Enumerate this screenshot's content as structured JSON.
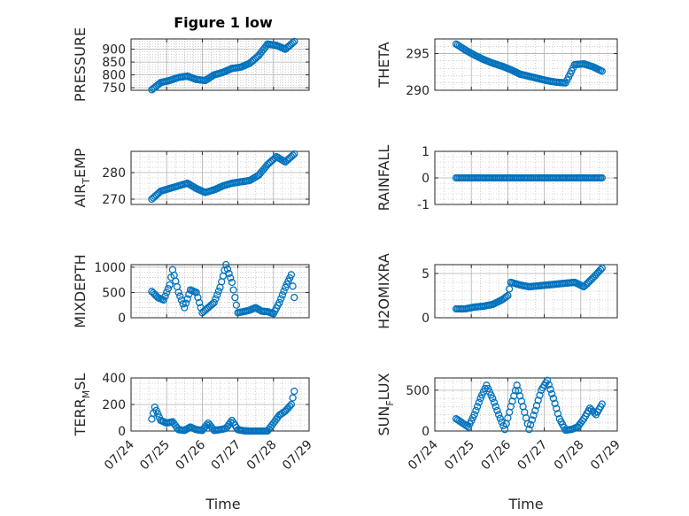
{
  "figure": {
    "title": "Figure 1 low",
    "xlabel": "Time"
  },
  "colors": {
    "marker": "#0072BD",
    "axis": "#262626",
    "grid": "#b0b0b0"
  },
  "chart_data": [
    {
      "id": "pressure",
      "type": "scatter",
      "ylabel": "PRESSURE",
      "ylabel_sub": "",
      "ylim": [
        740,
        940
      ],
      "yticks": [
        750,
        800,
        850,
        900
      ],
      "xticklabels": [],
      "x": [
        "07/24 14:00",
        "07/24 20:00",
        "07/25 02:00",
        "07/25 08:00",
        "07/25 14:00",
        "07/25 20:00",
        "07/26 02:00",
        "07/26 08:00",
        "07/26 14:00",
        "07/26 20:00",
        "07/27 02:00",
        "07/27 08:00",
        "07/27 14:00",
        "07/27 20:00",
        "07/28 02:00",
        "07/28 08:00",
        "07/28 14:00"
      ],
      "y": [
        742,
        770,
        778,
        790,
        795,
        782,
        778,
        800,
        810,
        825,
        830,
        845,
        875,
        920,
        915,
        900,
        930
      ]
    },
    {
      "id": "theta",
      "type": "scatter",
      "ylabel": "THETA",
      "ylabel_sub": "",
      "ylim": [
        290,
        297
      ],
      "yticks": [
        290,
        295
      ],
      "xticklabels": [],
      "x": [
        "07/24 14:00",
        "07/24 20:00",
        "07/25 02:00",
        "07/25 08:00",
        "07/25 14:00",
        "07/25 20:00",
        "07/26 02:00",
        "07/26 08:00",
        "07/26 14:00",
        "07/26 20:00",
        "07/27 02:00",
        "07/27 08:00",
        "07/27 14:00",
        "07/27 20:00",
        "07/28 02:00",
        "07/28 08:00",
        "07/28 14:00"
      ],
      "y": [
        296.3,
        295.5,
        294.8,
        294.2,
        293.7,
        293.3,
        292.8,
        292.2,
        291.9,
        291.6,
        291.3,
        291.1,
        291.0,
        293.5,
        293.6,
        293.2,
        292.6
      ]
    },
    {
      "id": "air_temp",
      "type": "scatter",
      "ylabel": "AIR",
      "ylabel_sub": "T",
      "ylabel_tail": "EMP",
      "ylim": [
        268,
        288
      ],
      "yticks": [
        270,
        280
      ],
      "xticklabels": [],
      "x": [
        "07/24 14:00",
        "07/24 20:00",
        "07/25 02:00",
        "07/25 08:00",
        "07/25 14:00",
        "07/25 20:00",
        "07/26 02:00",
        "07/26 08:00",
        "07/26 14:00",
        "07/26 20:00",
        "07/27 02:00",
        "07/27 08:00",
        "07/27 14:00",
        "07/27 20:00",
        "07/28 02:00",
        "07/28 08:00",
        "07/28 14:00"
      ],
      "y": [
        270,
        273,
        274,
        275,
        276,
        274,
        272.5,
        273.5,
        275,
        276,
        276.5,
        277,
        279,
        283,
        286,
        284,
        287
      ]
    },
    {
      "id": "rainfall",
      "type": "scatter",
      "ylabel": "RAINFALL",
      "ylabel_sub": "",
      "ylim": [
        -1,
        1
      ],
      "yticks": [
        -1,
        0,
        1
      ],
      "xticklabels": [],
      "x": [
        "07/24 14:00",
        "07/24 20:00",
        "07/25 02:00",
        "07/25 08:00",
        "07/25 14:00",
        "07/25 20:00",
        "07/26 02:00",
        "07/26 08:00",
        "07/26 14:00",
        "07/26 20:00",
        "07/27 02:00",
        "07/27 08:00",
        "07/27 14:00",
        "07/27 20:00",
        "07/28 02:00",
        "07/28 08:00",
        "07/28 14:00"
      ],
      "y": [
        0,
        0,
        0,
        0,
        0,
        0,
        0,
        0,
        0,
        0,
        0,
        0,
        0,
        0,
        0,
        0,
        0
      ]
    },
    {
      "id": "mixdepth",
      "type": "scatter",
      "ylabel": "MIXDEPTH",
      "ylabel_sub": "",
      "ylim": [
        0,
        1050
      ],
      "yticks": [
        0,
        500,
        1000
      ],
      "xticklabels": [],
      "x": [
        "07/24 14:00",
        "07/24 18:00",
        "07/24 22:00",
        "07/25 02:00",
        "07/25 04:00",
        "07/25 08:00",
        "07/25 12:00",
        "07/25 16:00",
        "07/25 20:00",
        "07/26 00:00",
        "07/26 04:00",
        "07/26 08:00",
        "07/26 12:00",
        "07/26 16:00",
        "07/26 20:00",
        "07/27 00:00",
        "07/27 04:00",
        "07/27 08:00",
        "07/27 12:00",
        "07/27 16:00",
        "07/27 20:00",
        "07/28 00:00",
        "07/28 04:00",
        "07/28 08:00",
        "07/28 12:00",
        "07/28 14:00"
      ],
      "y": [
        520,
        400,
        350,
        650,
        950,
        500,
        200,
        550,
        500,
        100,
        200,
        300,
        600,
        1050,
        700,
        100,
        120,
        150,
        200,
        130,
        120,
        80,
        300,
        600,
        850,
        400
      ]
    },
    {
      "id": "h2omixra",
      "type": "scatter",
      "ylabel": "H2OMIXRA",
      "ylabel_sub": "",
      "ylim": [
        0,
        6
      ],
      "yticks": [
        0,
        5
      ],
      "xticklabels": [],
      "x": [
        "07/24 14:00",
        "07/24 20:00",
        "07/25 02:00",
        "07/25 08:00",
        "07/25 14:00",
        "07/25 20:00",
        "07/26 00:00",
        "07/26 02:00",
        "07/26 08:00",
        "07/26 14:00",
        "07/26 20:00",
        "07/27 02:00",
        "07/27 08:00",
        "07/27 14:00",
        "07/27 20:00",
        "07/28 02:00",
        "07/28 08:00",
        "07/28 14:00"
      ],
      "y": [
        1.0,
        1.0,
        1.2,
        1.3,
        1.5,
        2.0,
        2.5,
        4.0,
        3.7,
        3.5,
        3.6,
        3.7,
        3.8,
        3.9,
        4.0,
        3.5,
        4.5,
        5.6
      ]
    },
    {
      "id": "terr_msl",
      "type": "scatter",
      "ylabel": "TERR",
      "ylabel_sub": "M",
      "ylabel_tail": "SL",
      "ylim": [
        0,
        400
      ],
      "yticks": [
        0,
        200,
        400
      ],
      "xticklabels": [
        "07/24",
        "07/25",
        "07/26",
        "07/27",
        "07/28",
        "07/29"
      ],
      "x": [
        "07/24 14:00",
        "07/24 16:00",
        "07/24 20:00",
        "07/25 00:00",
        "07/25 04:00",
        "07/25 08:00",
        "07/25 12:00",
        "07/25 16:00",
        "07/25 20:00",
        "07/26 00:00",
        "07/26 04:00",
        "07/26 08:00",
        "07/26 12:00",
        "07/26 16:00",
        "07/26 20:00",
        "07/27 00:00",
        "07/27 04:00",
        "07/27 08:00",
        "07/27 12:00",
        "07/27 16:00",
        "07/27 20:00",
        "07/28 00:00",
        "07/28 04:00",
        "07/28 08:00",
        "07/28 12:00",
        "07/28 14:00"
      ],
      "y": [
        90,
        180,
        80,
        60,
        70,
        10,
        5,
        30,
        10,
        5,
        60,
        5,
        10,
        20,
        80,
        10,
        2,
        0,
        0,
        0,
        0,
        60,
        120,
        150,
        200,
        300
      ]
    },
    {
      "id": "sun_flux",
      "type": "scatter",
      "ylabel": "SUN",
      "ylabel_sub": "F",
      "ylabel_tail": "LUX",
      "ylim": [
        0,
        650
      ],
      "yticks": [
        0,
        500
      ],
      "xticklabels": [
        "07/24",
        "07/25",
        "07/26",
        "07/27",
        "07/28",
        "07/29"
      ],
      "x": [
        "07/24 14:00",
        "07/24 18:00",
        "07/24 22:00",
        "07/25 02:00",
        "07/25 06:00",
        "07/25 10:00",
        "07/25 14:00",
        "07/25 18:00",
        "07/25 22:00",
        "07/26 02:00",
        "07/26 06:00",
        "07/26 10:00",
        "07/26 14:00",
        "07/26 18:00",
        "07/26 22:00",
        "07/27 02:00",
        "07/27 06:00",
        "07/27 10:00",
        "07/27 14:00",
        "07/27 18:00",
        "07/27 22:00",
        "07/28 02:00",
        "07/28 06:00",
        "07/28 10:00",
        "07/28 14:00"
      ],
      "y": [
        150,
        100,
        50,
        200,
        400,
        560,
        400,
        200,
        20,
        300,
        560,
        300,
        20,
        250,
        500,
        620,
        400,
        150,
        10,
        20,
        50,
        150,
        280,
        200,
        330
      ]
    }
  ]
}
